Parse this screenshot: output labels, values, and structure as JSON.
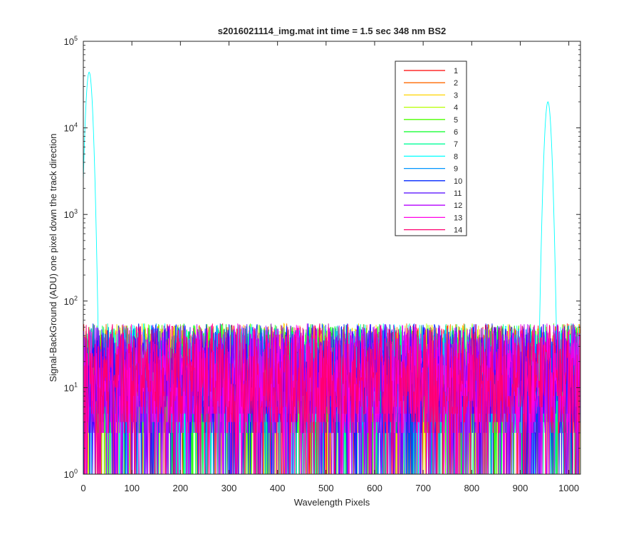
{
  "chart_data": {
    "type": "line",
    "title": "s2016021114_img.mat int time = 1.5 sec  348 nm BS2",
    "xlabel": "Wavelength Pixels",
    "ylabel": "Signal-BackGround (ADU) one pixel down the track direction",
    "xlim": [
      0,
      1024
    ],
    "ylim": [
      1,
      100000
    ],
    "yscale": "log",
    "grid": false,
    "legend_position": "top-right",
    "x_ticks": [
      "0",
      "100",
      "200",
      "300",
      "400",
      "500",
      "600",
      "700",
      "800",
      "900",
      "1000"
    ],
    "x_tick_values": [
      0,
      100,
      200,
      300,
      400,
      500,
      600,
      700,
      800,
      900,
      1000
    ],
    "y_tick_values": [
      1,
      10,
      100,
      1000,
      10000,
      100000
    ],
    "y_ticks": [
      {
        "base": "10",
        "exp": "0"
      },
      {
        "base": "10",
        "exp": "1"
      },
      {
        "base": "10",
        "exp": "2"
      },
      {
        "base": "10",
        "exp": "3"
      },
      {
        "base": "10",
        "exp": "4"
      },
      {
        "base": "10",
        "exp": "5"
      }
    ],
    "noise_description_levels": {
      "typical_min": 1,
      "typical_max": 55
    },
    "peaks": [
      {
        "series": "8",
        "x": 12,
        "y": 44000
      },
      {
        "series": "8",
        "x": 957,
        "y": 20000
      }
    ],
    "series": [
      {
        "name": "1",
        "color": "#ff0000"
      },
      {
        "name": "2",
        "color": "#ff6a00"
      },
      {
        "name": "3",
        "color": "#ffd500"
      },
      {
        "name": "4",
        "color": "#b7ff00"
      },
      {
        "name": "5",
        "color": "#4dff00"
      },
      {
        "name": "6",
        "color": "#00ff20"
      },
      {
        "name": "7",
        "color": "#00ff9a"
      },
      {
        "name": "8",
        "color": "#00ffff"
      },
      {
        "name": "9",
        "color": "#0096ff"
      },
      {
        "name": "10",
        "color": "#0026ff"
      },
      {
        "name": "11",
        "color": "#4d00ff"
      },
      {
        "name": "12",
        "color": "#b400ff"
      },
      {
        "name": "13",
        "color": "#ff00e6"
      },
      {
        "name": "14",
        "color": "#ff0070"
      }
    ]
  }
}
